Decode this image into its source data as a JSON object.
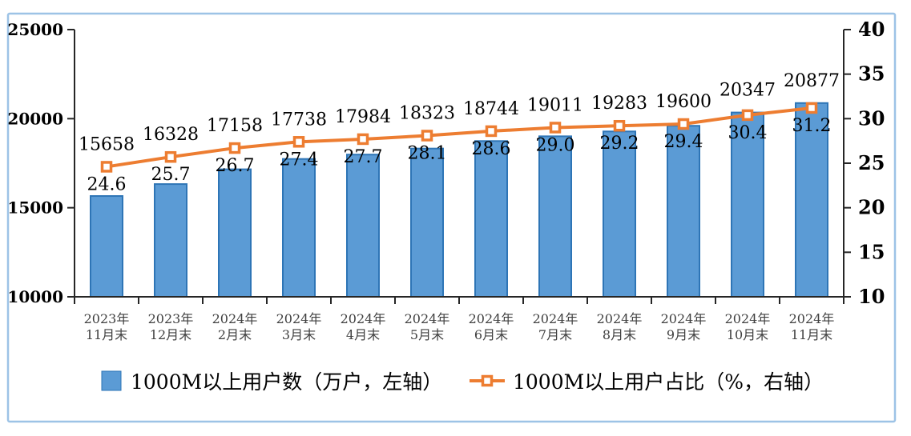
{
  "chart_data": {
    "type": "bar+line",
    "title": "",
    "categories": [
      [
        "2023年",
        "11月末"
      ],
      [
        "2023年",
        "12月末"
      ],
      [
        "2024年",
        "2月末"
      ],
      [
        "2024年",
        "3月末"
      ],
      [
        "2024年",
        "4月末"
      ],
      [
        "2024年",
        "5月末"
      ],
      [
        "2024年",
        "6月末"
      ],
      [
        "2024年",
        "7月末"
      ],
      [
        "2024年",
        "8月末"
      ],
      [
        "2024年",
        "9月末"
      ],
      [
        "2024年",
        "10月末"
      ],
      [
        "2024年",
        "11月末"
      ]
    ],
    "series": [
      {
        "name": "1000M以上用户数（万户，左轴）",
        "type": "bar",
        "axis": "left",
        "values": [
          15658,
          16328,
          17158,
          17738,
          17984,
          18323,
          18744,
          19011,
          19283,
          19600,
          20347,
          20877
        ],
        "color": "#5B9BD5",
        "border_color": "#2E75B6"
      },
      {
        "name": "1000M以上用户占比（%，右轴）",
        "type": "line",
        "axis": "right",
        "values": [
          24.6,
          25.7,
          26.7,
          27.4,
          27.7,
          28.1,
          28.6,
          29.0,
          29.2,
          29.4,
          30.4,
          31.2
        ],
        "value_labels": [
          "24.6",
          "25.7",
          "26.7",
          "27.4",
          "27.7",
          "28.1",
          "28.6",
          "29.0",
          "29.2",
          "29.4",
          "30.4",
          "31.2"
        ],
        "color": "#ED7D31",
        "marker": "open-square"
      }
    ],
    "left_axis": {
      "min": 10000,
      "max": 25000,
      "ticks": [
        25000,
        20000,
        15000,
        10000
      ]
    },
    "right_axis": {
      "min": 10,
      "max": 40,
      "ticks": [
        40,
        35,
        30,
        25,
        20,
        15,
        10
      ]
    },
    "grid": false,
    "legend_position": "bottom",
    "colors": {
      "frame": "#9DC3E6",
      "axis": "#262626",
      "data_label": "#000000",
      "x_label": "#404040"
    }
  }
}
